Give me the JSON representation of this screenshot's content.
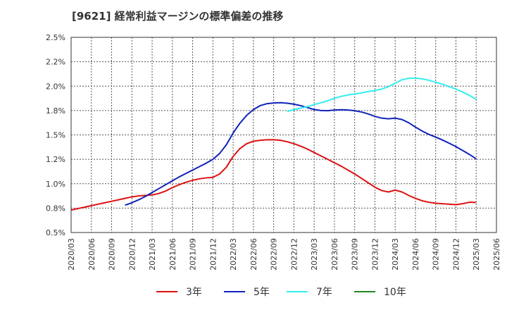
{
  "title": "[9621]  経常利益マージンの標準偏差の推移",
  "chart_data": {
    "type": "line",
    "title": "[9621]  経常利益マージンの標準偏差の推移",
    "xlabel": "",
    "ylabel": "",
    "ylim": [
      0.5,
      2.5
    ],
    "yticks": [
      "2.5%",
      "2.2%",
      "2.0%",
      "1.8%",
      "1.5%",
      "1.2%",
      "1.0%",
      "0.8%",
      "0.5%"
    ],
    "ytick_values": [
      2.5,
      2.25,
      2.0,
      1.75,
      1.5,
      1.25,
      1.0,
      0.75,
      0.5
    ],
    "xticks": [
      "2020/03",
      "2020/06",
      "2020/09",
      "2020/12",
      "2021/03",
      "2021/06",
      "2021/09",
      "2021/12",
      "2022/03",
      "2022/06",
      "2022/09",
      "2022/12",
      "2023/03",
      "2023/06",
      "2023/09",
      "2023/12",
      "2024/03",
      "2024/06",
      "2024/09",
      "2024/12",
      "2025/03",
      "2025/06"
    ],
    "grid": true,
    "legend_position": "bottom",
    "series": [
      {
        "name": "3年",
        "color": "#dd1111",
        "points": [
          [
            "2020/03",
            0.73
          ],
          [
            "2020/04",
            0.745
          ],
          [
            "2020/05",
            0.76
          ],
          [
            "2020/06",
            0.775
          ],
          [
            "2020/07",
            0.79
          ],
          [
            "2020/08",
            0.805
          ],
          [
            "2020/09",
            0.82
          ],
          [
            "2020/10",
            0.835
          ],
          [
            "2020/11",
            0.85
          ],
          [
            "2020/12",
            0.865
          ],
          [
            "2021/01",
            0.875
          ],
          [
            "2021/02",
            0.88
          ],
          [
            "2021/03",
            0.885
          ],
          [
            "2021/04",
            0.9
          ],
          [
            "2021/05",
            0.925
          ],
          [
            "2021/06",
            0.96
          ],
          [
            "2021/07",
            0.99
          ],
          [
            "2021/08",
            1.015
          ],
          [
            "2021/09",
            1.035
          ],
          [
            "2021/10",
            1.05
          ],
          [
            "2021/11",
            1.06
          ],
          [
            "2021/12",
            1.065
          ],
          [
            "2022/01",
            1.1
          ],
          [
            "2022/02",
            1.17
          ],
          [
            "2022/03",
            1.28
          ],
          [
            "2022/04",
            1.36
          ],
          [
            "2022/05",
            1.41
          ],
          [
            "2022/06",
            1.435
          ],
          [
            "2022/07",
            1.445
          ],
          [
            "2022/08",
            1.45
          ],
          [
            "2022/09",
            1.45
          ],
          [
            "2022/10",
            1.445
          ],
          [
            "2022/11",
            1.43
          ],
          [
            "2022/12",
            1.41
          ],
          [
            "2023/01",
            1.385
          ],
          [
            "2023/02",
            1.355
          ],
          [
            "2023/03",
            1.32
          ],
          [
            "2023/04",
            1.285
          ],
          [
            "2023/05",
            1.25
          ],
          [
            "2023/06",
            1.215
          ],
          [
            "2023/07",
            1.18
          ],
          [
            "2023/08",
            1.14
          ],
          [
            "2023/09",
            1.1
          ],
          [
            "2023/10",
            1.055
          ],
          [
            "2023/11",
            1.01
          ],
          [
            "2023/12",
            0.965
          ],
          [
            "2024/01",
            0.93
          ],
          [
            "2024/02",
            0.915
          ],
          [
            "2024/03",
            0.935
          ],
          [
            "2024/04",
            0.915
          ],
          [
            "2024/05",
            0.88
          ],
          [
            "2024/06",
            0.85
          ],
          [
            "2024/07",
            0.825
          ],
          [
            "2024/08",
            0.81
          ],
          [
            "2024/09",
            0.8
          ],
          [
            "2024/10",
            0.795
          ],
          [
            "2024/11",
            0.79
          ],
          [
            "2024/12",
            0.785
          ],
          [
            "2025/01",
            0.795
          ],
          [
            "2025/02",
            0.81
          ],
          [
            "2025/03",
            0.808
          ]
        ]
      },
      {
        "name": "5年",
        "color": "#1122bb",
        "points": [
          [
            "2020/11",
            0.78
          ],
          [
            "2020/12",
            0.805
          ],
          [
            "2021/01",
            0.835
          ],
          [
            "2021/02",
            0.87
          ],
          [
            "2021/03",
            0.91
          ],
          [
            "2021/04",
            0.95
          ],
          [
            "2021/05",
            0.99
          ],
          [
            "2021/06",
            1.03
          ],
          [
            "2021/07",
            1.07
          ],
          [
            "2021/08",
            1.105
          ],
          [
            "2021/09",
            1.14
          ],
          [
            "2021/10",
            1.175
          ],
          [
            "2021/11",
            1.21
          ],
          [
            "2021/12",
            1.25
          ],
          [
            "2022/01",
            1.31
          ],
          [
            "2022/02",
            1.4
          ],
          [
            "2022/03",
            1.52
          ],
          [
            "2022/04",
            1.62
          ],
          [
            "2022/05",
            1.7
          ],
          [
            "2022/06",
            1.76
          ],
          [
            "2022/07",
            1.8
          ],
          [
            "2022/08",
            1.82
          ],
          [
            "2022/09",
            1.828
          ],
          [
            "2022/10",
            1.83
          ],
          [
            "2022/11",
            1.825
          ],
          [
            "2022/12",
            1.815
          ],
          [
            "2023/01",
            1.8
          ],
          [
            "2023/02",
            1.78
          ],
          [
            "2023/03",
            1.76
          ],
          [
            "2023/04",
            1.75
          ],
          [
            "2023/05",
            1.748
          ],
          [
            "2023/06",
            1.755
          ],
          [
            "2023/07",
            1.758
          ],
          [
            "2023/08",
            1.755
          ],
          [
            "2023/09",
            1.748
          ],
          [
            "2023/10",
            1.735
          ],
          [
            "2023/11",
            1.715
          ],
          [
            "2023/12",
            1.69
          ],
          [
            "2024/01",
            1.672
          ],
          [
            "2024/02",
            1.665
          ],
          [
            "2024/03",
            1.672
          ],
          [
            "2024/04",
            1.658
          ],
          [
            "2024/05",
            1.625
          ],
          [
            "2024/06",
            1.58
          ],
          [
            "2024/07",
            1.54
          ],
          [
            "2024/08",
            1.505
          ],
          [
            "2024/09",
            1.478
          ],
          [
            "2024/10",
            1.448
          ],
          [
            "2024/11",
            1.415
          ],
          [
            "2024/12",
            1.38
          ],
          [
            "2025/01",
            1.34
          ],
          [
            "2025/02",
            1.3
          ],
          [
            "2025/03",
            1.255
          ]
        ]
      },
      {
        "name": "7年",
        "color": "#33eeee",
        "points": [
          [
            "2022/11",
            1.74
          ],
          [
            "2022/12",
            1.76
          ],
          [
            "2023/01",
            1.775
          ],
          [
            "2023/02",
            1.79
          ],
          [
            "2023/03",
            1.81
          ],
          [
            "2023/04",
            1.83
          ],
          [
            "2023/05",
            1.85
          ],
          [
            "2023/06",
            1.875
          ],
          [
            "2023/07",
            1.895
          ],
          [
            "2023/08",
            1.91
          ],
          [
            "2023/09",
            1.92
          ],
          [
            "2023/10",
            1.93
          ],
          [
            "2023/11",
            1.945
          ],
          [
            "2023/12",
            1.955
          ],
          [
            "2024/01",
            1.97
          ],
          [
            "2024/02",
            1.995
          ],
          [
            "2024/03",
            2.03
          ],
          [
            "2024/04",
            2.065
          ],
          [
            "2024/05",
            2.08
          ],
          [
            "2024/06",
            2.082
          ],
          [
            "2024/07",
            2.075
          ],
          [
            "2024/08",
            2.06
          ],
          [
            "2024/09",
            2.04
          ],
          [
            "2024/10",
            2.02
          ],
          [
            "2024/11",
            1.995
          ],
          [
            "2024/12",
            1.97
          ],
          [
            "2025/01",
            1.94
          ],
          [
            "2025/02",
            1.905
          ],
          [
            "2025/03",
            1.865
          ]
        ]
      },
      {
        "name": "10年",
        "color": "#228822",
        "points": []
      }
    ]
  }
}
